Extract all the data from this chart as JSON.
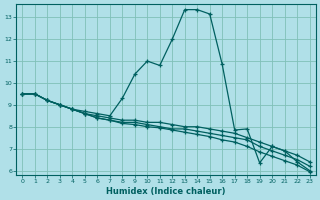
{
  "xlabel": "Humidex (Indice chaleur)",
  "background_color": "#b0e0e8",
  "grid_color": "#80c0b8",
  "line_color": "#006060",
  "xlim": [
    -0.5,
    23.5
  ],
  "ylim": [
    5.8,
    13.6
  ],
  "yticks": [
    6,
    7,
    8,
    9,
    10,
    11,
    12,
    13
  ],
  "xticks": [
    0,
    1,
    2,
    3,
    4,
    5,
    6,
    7,
    8,
    9,
    10,
    11,
    12,
    13,
    14,
    15,
    16,
    17,
    18,
    19,
    20,
    21,
    22,
    23
  ],
  "series": [
    {
      "x": [
        0,
        1,
        2,
        3,
        4,
        5,
        6,
        7,
        8,
        9,
        10,
        11,
        12,
        13,
        14,
        15,
        16,
        17,
        18,
        19,
        20,
        21,
        22,
        23
      ],
      "y": [
        9.5,
        9.5,
        9.2,
        9.0,
        8.8,
        8.7,
        8.6,
        8.5,
        9.3,
        10.4,
        11.0,
        10.8,
        12.0,
        13.35,
        13.35,
        13.15,
        10.85,
        7.85,
        7.9,
        6.35,
        7.1,
        6.9,
        6.4,
        6.0
      ]
    },
    {
      "x": [
        0,
        1,
        2,
        3,
        4,
        5,
        6,
        7,
        8,
        9,
        10,
        11,
        12,
        13,
        14,
        15,
        16,
        17,
        18,
        19,
        20,
        21,
        22,
        23
      ],
      "y": [
        9.5,
        9.5,
        9.2,
        9.0,
        8.8,
        8.6,
        8.5,
        8.4,
        8.3,
        8.3,
        8.2,
        8.2,
        8.1,
        8.0,
        8.0,
        7.9,
        7.8,
        7.7,
        7.5,
        7.3,
        7.1,
        6.9,
        6.7,
        6.4
      ]
    },
    {
      "x": [
        0,
        1,
        2,
        3,
        4,
        5,
        6,
        7,
        8,
        9,
        10,
        11,
        12,
        13,
        14,
        15,
        16,
        17,
        18,
        19,
        20,
        21,
        22,
        23
      ],
      "y": [
        9.5,
        9.5,
        9.2,
        9.0,
        8.8,
        8.6,
        8.4,
        8.3,
        8.2,
        8.2,
        8.1,
        8.0,
        7.9,
        7.9,
        7.8,
        7.7,
        7.6,
        7.5,
        7.4,
        7.1,
        6.9,
        6.7,
        6.5,
        6.2
      ]
    },
    {
      "x": [
        0,
        1,
        2,
        3,
        4,
        5,
        6,
        7,
        8,
        9,
        10,
        11,
        12,
        13,
        14,
        15,
        16,
        17,
        18,
        19,
        20,
        21,
        22,
        23
      ],
      "y": [
        9.5,
        9.5,
        9.2,
        9.0,
        8.8,
        8.6,
        8.4,
        8.3,
        8.15,
        8.1,
        8.0,
        7.95,
        7.85,
        7.75,
        7.65,
        7.55,
        7.4,
        7.3,
        7.1,
        6.85,
        6.65,
        6.45,
        6.25,
        5.95
      ]
    }
  ]
}
